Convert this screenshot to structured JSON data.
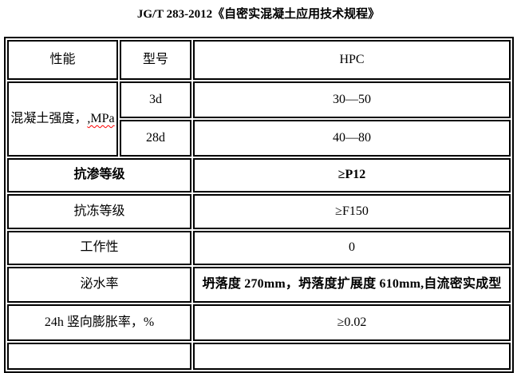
{
  "document": {
    "title": "JG/T 283-2012《自密实混凝土应用技术规程》"
  },
  "table": {
    "header": {
      "performance": "性能",
      "model": "型号",
      "product": "HPC"
    },
    "strength": {
      "label": "混凝土强度，",
      "unit_suffix": ",MPa",
      "ages": [
        {
          "age": "3d",
          "value": "30—50"
        },
        {
          "age": "28d",
          "value": "40—80"
        }
      ]
    },
    "rows": [
      {
        "label": "抗渗等级",
        "value": "≥P12"
      },
      {
        "label": "抗冻等级",
        "value": "≥F150"
      },
      {
        "label": "工作性",
        "value": "0"
      },
      {
        "label": "泌水率",
        "value": "坍落度 270mm，坍落度扩展度 610mm,自流密实成型"
      },
      {
        "label": "24h 竖向膨胀率，%",
        "value": "≥0.02"
      }
    ]
  },
  "colors": {
    "text": "#000000",
    "border": "#000000",
    "background": "#ffffff",
    "spellcheck_underline": "#ff0000"
  }
}
